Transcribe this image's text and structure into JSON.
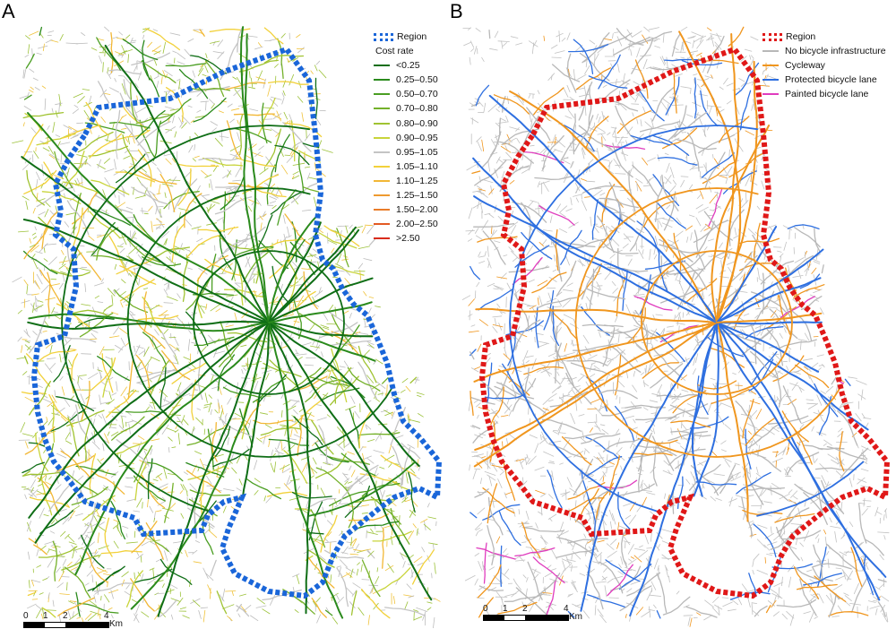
{
  "panels": [
    {
      "letter": "A",
      "legend": {
        "region_label": "Region",
        "region_color": "#1a66d9",
        "title": "Cost rate",
        "items": [
          {
            "label": "<0.25",
            "color": "#0f6e16"
          },
          {
            "label": "0.25–0.50",
            "color": "#2a8a1c"
          },
          {
            "label": "0.50–0.70",
            "color": "#4a9e22"
          },
          {
            "label": "0.70–0.80",
            "color": "#74b12a"
          },
          {
            "label": "0.80–0.90",
            "color": "#a0c331"
          },
          {
            "label": "0.90–0.95",
            "color": "#c8d43a"
          },
          {
            "label": "0.95–1.05",
            "color": "#c4c4c4"
          },
          {
            "label": "1.05–1.10",
            "color": "#f2d13b"
          },
          {
            "label": "1.10–1.25",
            "color": "#f2b735"
          },
          {
            "label": "1.25–1.50",
            "color": "#ee9a2f"
          },
          {
            "label": "1.50–2.00",
            "color": "#e97c29"
          },
          {
            "label": "2.00–2.50",
            "color": "#e35a24"
          },
          {
            "label": ">2.50",
            "color": "#d92b1c"
          }
        ]
      },
      "scale": {
        "ticks": [
          "0",
          "1",
          "2",
          "4"
        ],
        "unit": "Km"
      }
    },
    {
      "letter": "B",
      "legend": {
        "region_label": "Region",
        "region_color": "#e01818",
        "items": [
          {
            "label": "No bicycle infrastructure",
            "color": "#b8b8b8"
          },
          {
            "label": "Cycleway",
            "color": "#f0961e"
          },
          {
            "label": "Protected bicycle lane",
            "color": "#2e6fe0"
          },
          {
            "label": "Painted bicycle lane",
            "color": "#e03cbe"
          }
        ]
      },
      "scale": {
        "ticks": [
          "0",
          "1",
          "2",
          "4"
        ],
        "unit": "Km"
      }
    }
  ]
}
